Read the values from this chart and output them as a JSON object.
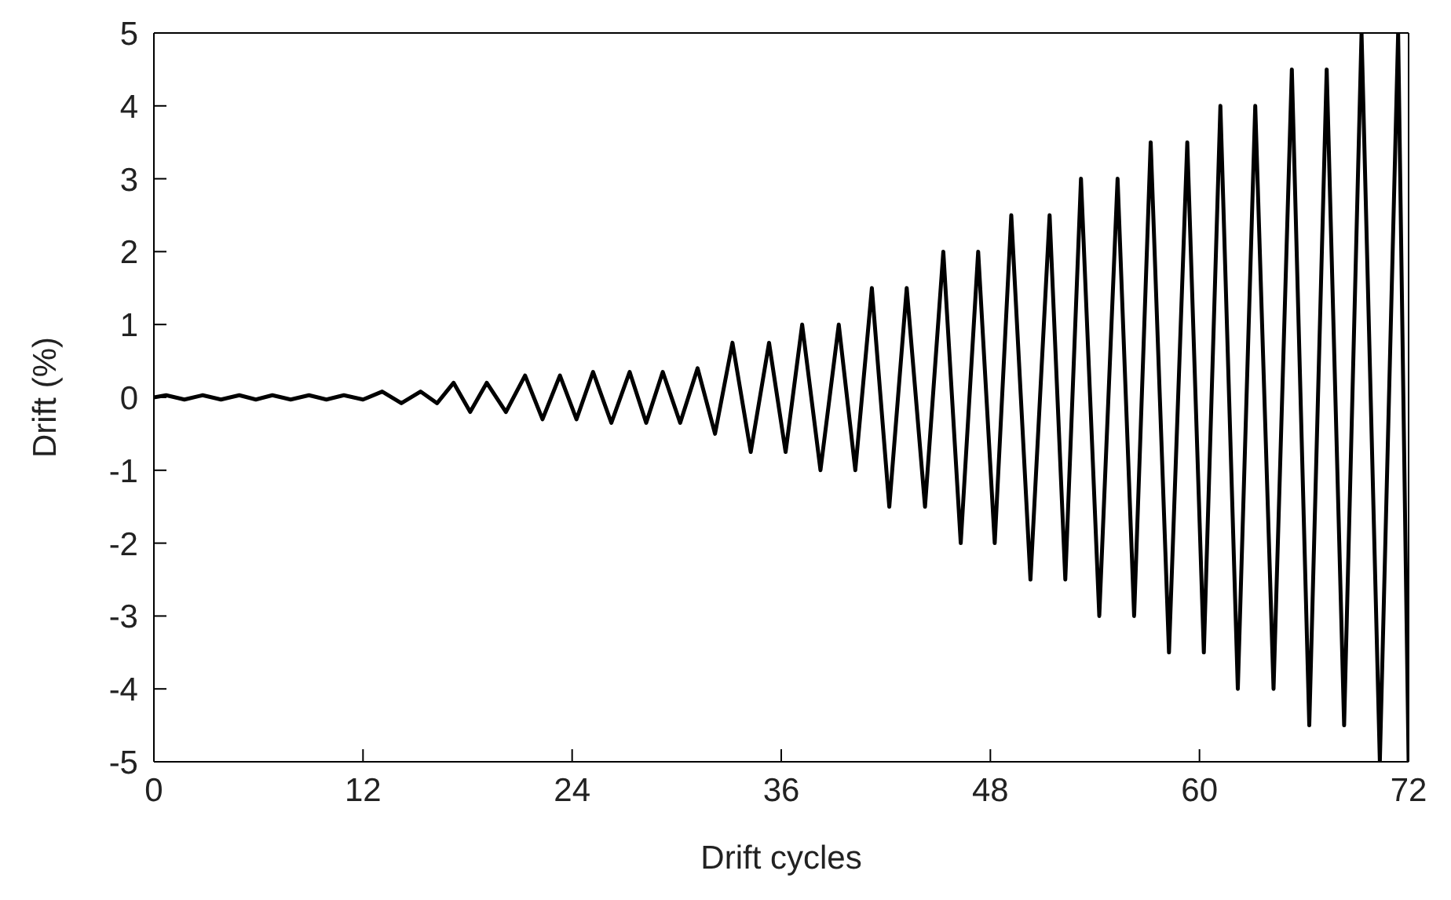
{
  "chart_data": {
    "type": "line",
    "xlabel": "Drift cycles",
    "ylabel": "Drift (%)",
    "xlim": [
      0,
      72
    ],
    "xticks": [
      0,
      12,
      24,
      36,
      48,
      60,
      72
    ],
    "ylim": [
      -5,
      5
    ],
    "yticks": [
      5,
      4,
      3,
      2,
      1,
      0,
      -1,
      -2,
      -3,
      -4,
      -5
    ],
    "grid": false,
    "legend": false,
    "marker": "none",
    "line_style": "solid",
    "series": [
      {
        "color": "#000000",
        "x": [
          0,
          0.7,
          1.75,
          2.8,
          3.85,
          4.9,
          5.85,
          6.8,
          7.85,
          8.9,
          9.9,
          10.9,
          12.0,
          13.1,
          14.2,
          15.3,
          16.25,
          17.2,
          18.15,
          19.1,
          20.2,
          21.3,
          22.3,
          23.3,
          24.25,
          25.2,
          26.25,
          27.3,
          28.25,
          29.2,
          30.2,
          31.2,
          32.2,
          33.2,
          34.25,
          35.3,
          36.25,
          37.2,
          38.25,
          39.3,
          40.25,
          41.2,
          42.2,
          43.2,
          44.25,
          45.3,
          46.3,
          47.3,
          48.25,
          49.2,
          50.3,
          51.4,
          52.3,
          53.2,
          54.25,
          55.3,
          56.25,
          57.2,
          58.25,
          59.3,
          60.25,
          61.2,
          62.2,
          63.2,
          64.25,
          65.3,
          66.3,
          67.3,
          68.3,
          69.3,
          70.35,
          71.4,
          72
        ],
        "values": [
          0,
          0.03,
          -0.03,
          0.03,
          -0.03,
          0.03,
          -0.03,
          0.03,
          -0.03,
          0.03,
          -0.03,
          0.03,
          -0.03,
          0.08,
          -0.08,
          0.08,
          -0.08,
          0.2,
          -0.2,
          0.2,
          -0.2,
          0.3,
          -0.3,
          0.3,
          -0.3,
          0.35,
          -0.35,
          0.35,
          -0.35,
          0.35,
          -0.35,
          0.4,
          -0.5,
          0.75,
          -0.75,
          0.75,
          -0.75,
          1,
          -1,
          1,
          -1,
          1.5,
          -1.5,
          1.5,
          -1.5,
          2,
          -2,
          2,
          -2,
          2.5,
          -2.5,
          2.5,
          -2.5,
          3,
          -3,
          3,
          -3,
          3.5,
          -3.5,
          3.5,
          -3.5,
          4,
          -4,
          4,
          -4,
          4.5,
          -4.5,
          4.5,
          -4.5,
          5,
          -5,
          5,
          -5
        ]
      }
    ]
  }
}
